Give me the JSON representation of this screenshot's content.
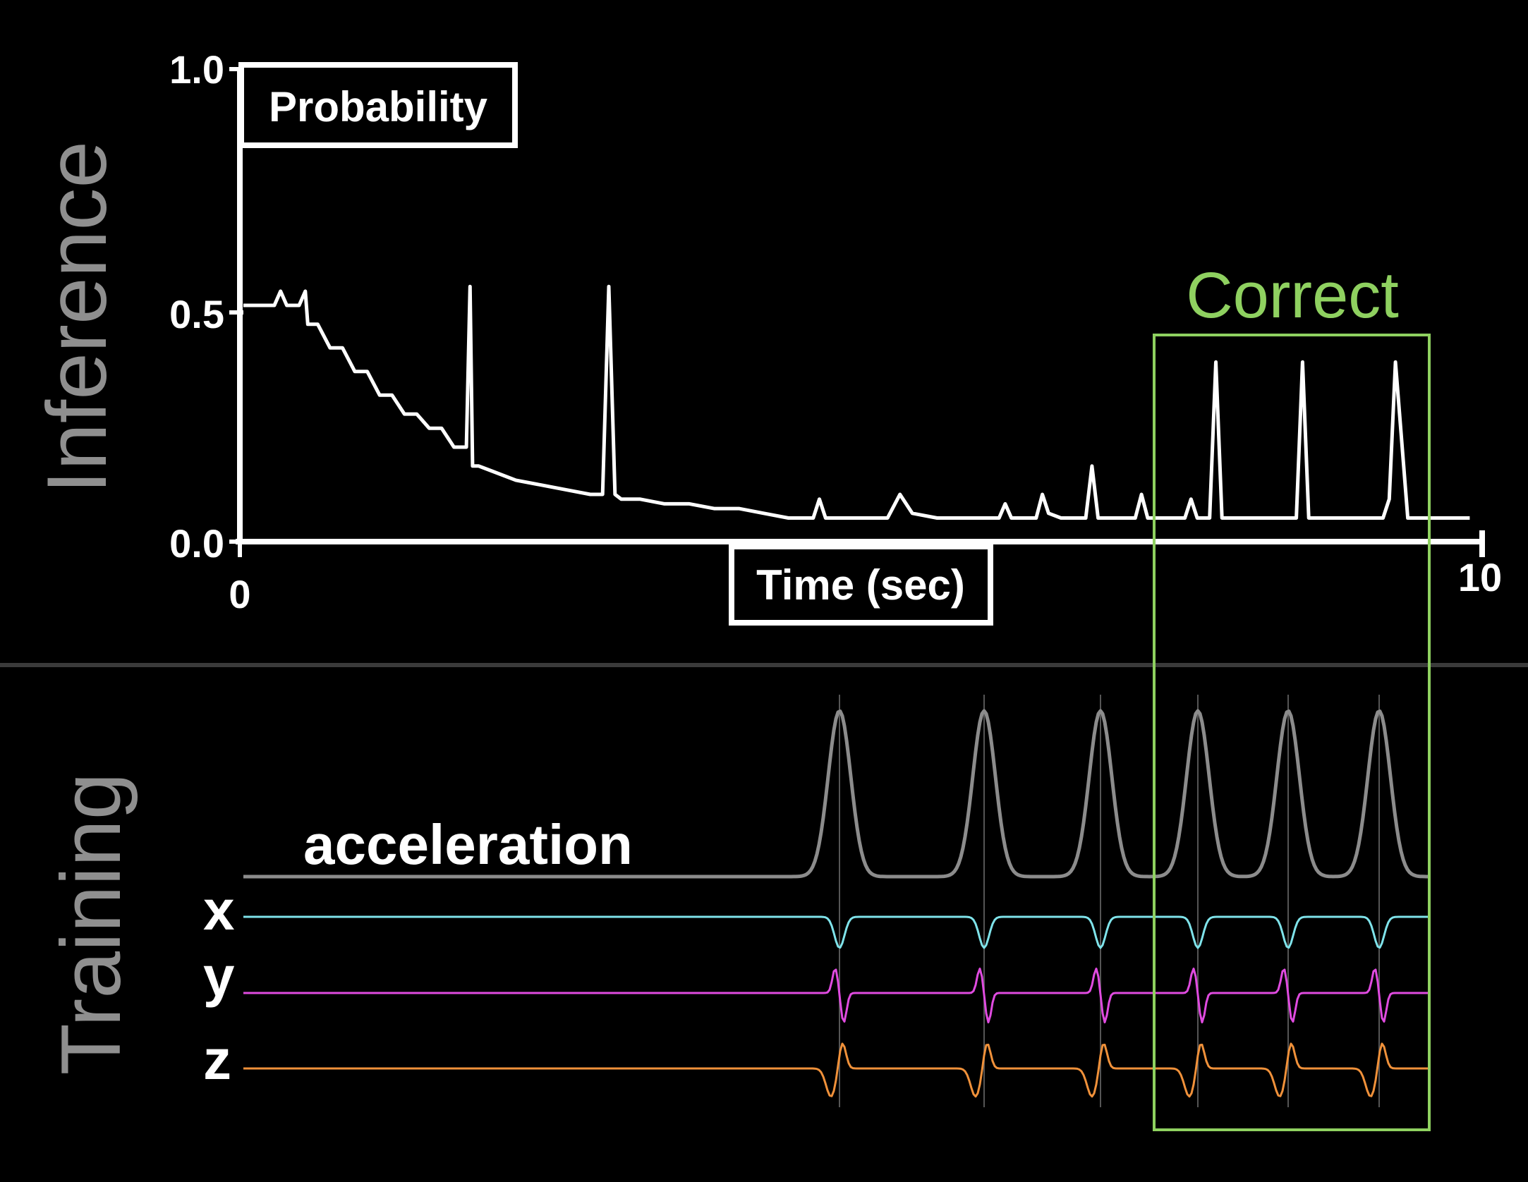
{
  "sections": {
    "top": "Inference",
    "bottom": "Training"
  },
  "highlight": {
    "label": "Correct",
    "color": "#8fd160"
  },
  "chart_data": [
    {
      "type": "line",
      "ylabel": "Probability",
      "xlabel": "Time (sec)",
      "xlim": [
        0,
        10
      ],
      "ylim": [
        0,
        1
      ],
      "yticks": [
        "0.0",
        "0.5",
        "1.0"
      ],
      "xticks": [
        "0",
        "10"
      ],
      "series": [
        {
          "color": "#ffffff",
          "x": [
            0.0,
            0.1,
            0.2,
            0.25,
            0.3,
            0.35,
            0.45,
            0.5,
            0.52,
            0.55,
            0.6,
            0.7,
            0.8,
            0.9,
            1.0,
            1.1,
            1.2,
            1.3,
            1.4,
            1.5,
            1.6,
            1.7,
            1.8,
            1.83,
            1.85,
            1.9,
            2.0,
            2.2,
            2.4,
            2.6,
            2.8,
            2.9,
            2.95,
            3.0,
            3.05,
            3.2,
            3.4,
            3.6,
            3.8,
            4.0,
            4.2,
            4.4,
            4.6,
            4.65,
            4.7,
            4.8,
            5.0,
            5.2,
            5.3,
            5.4,
            5.6,
            5.8,
            6.0,
            6.1,
            6.15,
            6.2,
            6.3,
            6.4,
            6.45,
            6.5,
            6.6,
            6.8,
            6.85,
            6.9,
            7.0,
            7.1,
            7.2,
            7.25,
            7.3,
            7.5,
            7.6,
            7.65,
            7.7,
            7.8,
            7.85,
            7.9,
            8.0,
            8.2,
            8.4,
            8.5,
            8.55,
            8.6,
            8.7,
            8.9,
            9.0,
            9.2,
            9.25,
            9.3,
            9.4,
            9.6,
            9.7,
            9.75,
            9.8,
            9.9
          ],
          "values": [
            0.5,
            0.5,
            0.5,
            0.5,
            0.53,
            0.5,
            0.5,
            0.53,
            0.46,
            0.46,
            0.46,
            0.41,
            0.41,
            0.36,
            0.36,
            0.31,
            0.31,
            0.27,
            0.27,
            0.24,
            0.24,
            0.2,
            0.2,
            0.54,
            0.16,
            0.16,
            0.15,
            0.13,
            0.12,
            0.11,
            0.1,
            0.1,
            0.54,
            0.1,
            0.09,
            0.09,
            0.08,
            0.08,
            0.07,
            0.07,
            0.06,
            0.05,
            0.05,
            0.09,
            0.05,
            0.05,
            0.05,
            0.05,
            0.1,
            0.06,
            0.05,
            0.05,
            0.05,
            0.05,
            0.08,
            0.05,
            0.05,
            0.05,
            0.1,
            0.06,
            0.05,
            0.05,
            0.16,
            0.05,
            0.05,
            0.05,
            0.05,
            0.1,
            0.05,
            0.05,
            0.05,
            0.09,
            0.05,
            0.05,
            0.38,
            0.05,
            0.05,
            0.05,
            0.05,
            0.05,
            0.38,
            0.05,
            0.05,
            0.05,
            0.05,
            0.05,
            0.09,
            0.38,
            0.05,
            0.05,
            0.05,
            0.05,
            0.05,
            0.05
          ]
        }
      ]
    },
    {
      "type": "line",
      "title": "acceleration",
      "series": [
        {
          "name": "acceleration",
          "color": "#8c8c8c"
        },
        {
          "name": "x",
          "color": "#7fe3ea"
        },
        {
          "name": "y",
          "color": "#e04be0"
        },
        {
          "name": "z",
          "color": "#f0913a"
        }
      ]
    }
  ]
}
